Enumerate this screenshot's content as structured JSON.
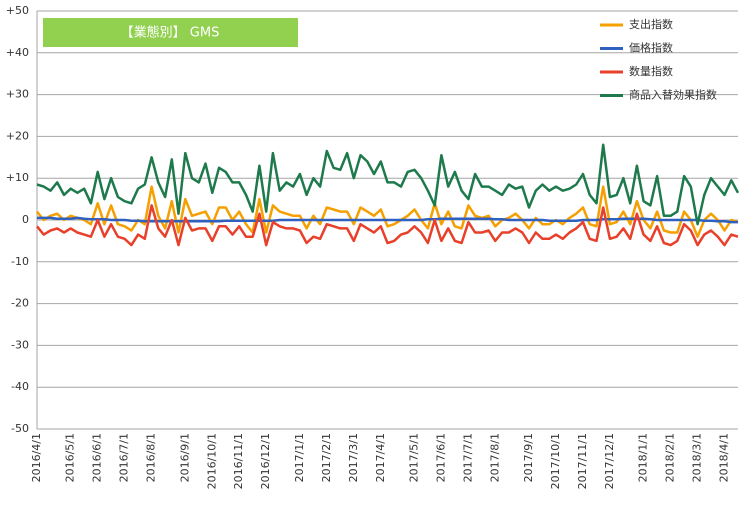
{
  "chart_data": {
    "type": "line",
    "title": "【業態別】 GMS",
    "title_color": "#92d050",
    "categories": [
      "2016/4/1",
      null,
      null,
      null,
      null,
      "2016/5/1",
      null,
      null,
      null,
      "2016/6/1",
      null,
      null,
      null,
      "2016/7/1",
      null,
      null,
      null,
      "2016/8/1",
      null,
      null,
      null,
      null,
      "2016/9/1",
      null,
      null,
      null,
      "2016/10/1",
      null,
      null,
      null,
      "2016/11/1",
      null,
      null,
      null,
      "2016/12/1",
      null,
      null,
      null,
      null,
      "2017/1/1",
      null,
      null,
      null,
      "2017/2/1",
      null,
      null,
      null,
      "2017/3/1",
      null,
      null,
      null,
      "2017/4/1",
      null,
      null,
      null,
      null,
      "2017/5/1",
      null,
      null,
      null,
      "2017/6/1",
      null,
      null,
      null,
      "2017/7/1",
      null,
      null,
      null,
      "2017/8/1",
      null,
      null,
      null,
      null,
      "2017/9/1",
      null,
      null,
      null,
      "2017/10/1",
      null,
      null,
      null,
      "2017/11/1",
      null,
      null,
      null,
      "2017/12/1",
      null,
      null,
      null,
      null,
      "2018/1/1",
      null,
      null,
      null,
      "2018/2/1",
      null,
      null,
      null,
      "2018/3/1",
      null,
      null,
      null,
      "2018/4/1",
      null,
      null
    ],
    "series": [
      {
        "name": "支出指数",
        "color": "#f5a000",
        "values": [
          2,
          0,
          1,
          1.5,
          0,
          1,
          0.5,
          0,
          -1,
          4,
          -1,
          3.5,
          -1,
          -1.5,
          -2.5,
          0,
          -1,
          8,
          1,
          -2,
          4.5,
          -3,
          5,
          1,
          1.5,
          2,
          -1,
          3,
          3,
          0,
          2,
          -1,
          -3,
          5,
          -3,
          3.5,
          2,
          1.5,
          1,
          1,
          -2,
          1,
          -1,
          3,
          2.5,
          2,
          2,
          -1,
          3,
          2,
          1,
          2.5,
          -1.5,
          -1,
          0,
          1,
          2.5,
          0,
          -2,
          4,
          -1,
          2,
          -1.5,
          -2,
          3.5,
          1,
          0.5,
          1,
          -1.5,
          0,
          0.5,
          1.5,
          0,
          -2,
          0.5,
          -1,
          -1,
          0,
          -1,
          0.5,
          1.5,
          3,
          -1,
          -1.5,
          8,
          -1,
          -0.5,
          2,
          -1,
          4.5,
          0,
          -2,
          2,
          -2.5,
          -3,
          -3,
          2,
          0,
          -4,
          0,
          1.5,
          0,
          -2.5,
          0,
          -0.5
        ]
      },
      {
        "name": "価格指数",
        "color": "#2f5fbf",
        "values": [
          0.5,
          0.5,
          0.5,
          0.3,
          0.3,
          0.3,
          0.5,
          0.3,
          0.2,
          0.2,
          0.2,
          0,
          0,
          0,
          -0.2,
          -0.2,
          -0.3,
          -0.3,
          -0.3,
          -0.3,
          -0.3,
          -0.3,
          -0.3,
          -0.3,
          -0.3,
          -0.3,
          -0.3,
          -0.3,
          -0.2,
          -0.2,
          -0.2,
          -0.2,
          -0.2,
          -0.2,
          -0.2,
          -0.2,
          0,
          0,
          0,
          0,
          0,
          0,
          0,
          0,
          0,
          0,
          0,
          0,
          0,
          0,
          0,
          0,
          0,
          0,
          0,
          0,
          0,
          0,
          0.2,
          0.2,
          0.3,
          0.3,
          0.3,
          0.3,
          0.3,
          0.3,
          0.3,
          0.3,
          0.2,
          0.2,
          0,
          0,
          0,
          0,
          0,
          0,
          -0.2,
          -0.2,
          -0.2,
          -0.2,
          -0.2,
          0,
          0,
          0,
          0.2,
          0.2,
          0.2,
          0.3,
          0.3,
          0.3,
          0.3,
          0.2,
          0,
          0,
          0,
          0,
          0,
          0,
          0,
          -0.2,
          -0.2,
          -0.3,
          -0.3,
          -0.5,
          -0.5
        ]
      },
      {
        "name": "数量指数",
        "color": "#e8402a",
        "values": [
          -1.5,
          -3.5,
          -2.5,
          -2,
          -3,
          -2,
          -3,
          -3.5,
          -4,
          0,
          -4,
          -1,
          -4,
          -4.5,
          -6,
          -3.5,
          -4.5,
          3.5,
          -2,
          -4,
          0,
          -6,
          0.5,
          -2.5,
          -2,
          -2,
          -5,
          -1.5,
          -1.5,
          -3.5,
          -1.5,
          -4,
          -4,
          1.5,
          -6,
          -0.5,
          -1.5,
          -2,
          -2,
          -2.5,
          -5.5,
          -4,
          -4.5,
          -1,
          -1.5,
          -2,
          -2,
          -5,
          -1,
          -2,
          -3,
          -1.5,
          -5.5,
          -5,
          -3.5,
          -3,
          -1.5,
          -3,
          -5.5,
          0,
          -5,
          -2,
          -5,
          -5.5,
          -0.5,
          -3,
          -3,
          -2.5,
          -5,
          -3,
          -3,
          -2,
          -3,
          -5.5,
          -3,
          -4.5,
          -4.5,
          -3.5,
          -4.5,
          -3,
          -2,
          -0.5,
          -4.5,
          -5,
          3,
          -4.5,
          -4,
          -2,
          -4.5,
          1.5,
          -3.5,
          -5,
          -1.5,
          -5.5,
          -6,
          -5,
          -1,
          -2.5,
          -6,
          -3.5,
          -2.5,
          -4,
          -6,
          -3.5,
          -4
        ]
      },
      {
        "name": "商品入替効果指数",
        "color": "#1e7a4c",
        "values": [
          8.5,
          8,
          7,
          9,
          6,
          7.5,
          6.5,
          7.5,
          4,
          11.5,
          5,
          10,
          5.5,
          4.5,
          4,
          7.5,
          8.5,
          15,
          9,
          5.5,
          14.5,
          1.5,
          16,
          10,
          9,
          13.5,
          6.5,
          12.5,
          11.5,
          9,
          9,
          6,
          2,
          13,
          2,
          16,
          7,
          9,
          8,
          11,
          6,
          10,
          8,
          16.5,
          12.5,
          12,
          16,
          10,
          15.5,
          14,
          11,
          14,
          9,
          9,
          8,
          11.5,
          12,
          10,
          7,
          3.5,
          15.5,
          8,
          11.5,
          7,
          5,
          11,
          8,
          8,
          7,
          6,
          8.5,
          7.5,
          8,
          3,
          7,
          8.5,
          7,
          8,
          7,
          7.5,
          8.5,
          11,
          6,
          4,
          18,
          5.5,
          6,
          10,
          4,
          13,
          4.5,
          3.5,
          10.5,
          1,
          1,
          2,
          10.5,
          8,
          -1,
          6,
          10,
          8,
          6,
          9.5,
          6.5
        ]
      }
    ],
    "ylim": [
      -50,
      50
    ],
    "yticks": [
      -50,
      -40,
      -30,
      -20,
      -10,
      0,
      {
        "value": 10,
        "label": "+10"
      },
      {
        "value": 20,
        "label": "+20"
      },
      {
        "value": 30,
        "label": "+30"
      },
      {
        "value": 40,
        "label": "+40"
      },
      {
        "value": 50,
        "label": "+50"
      }
    ],
    "grid": true,
    "legend": "top-right"
  }
}
